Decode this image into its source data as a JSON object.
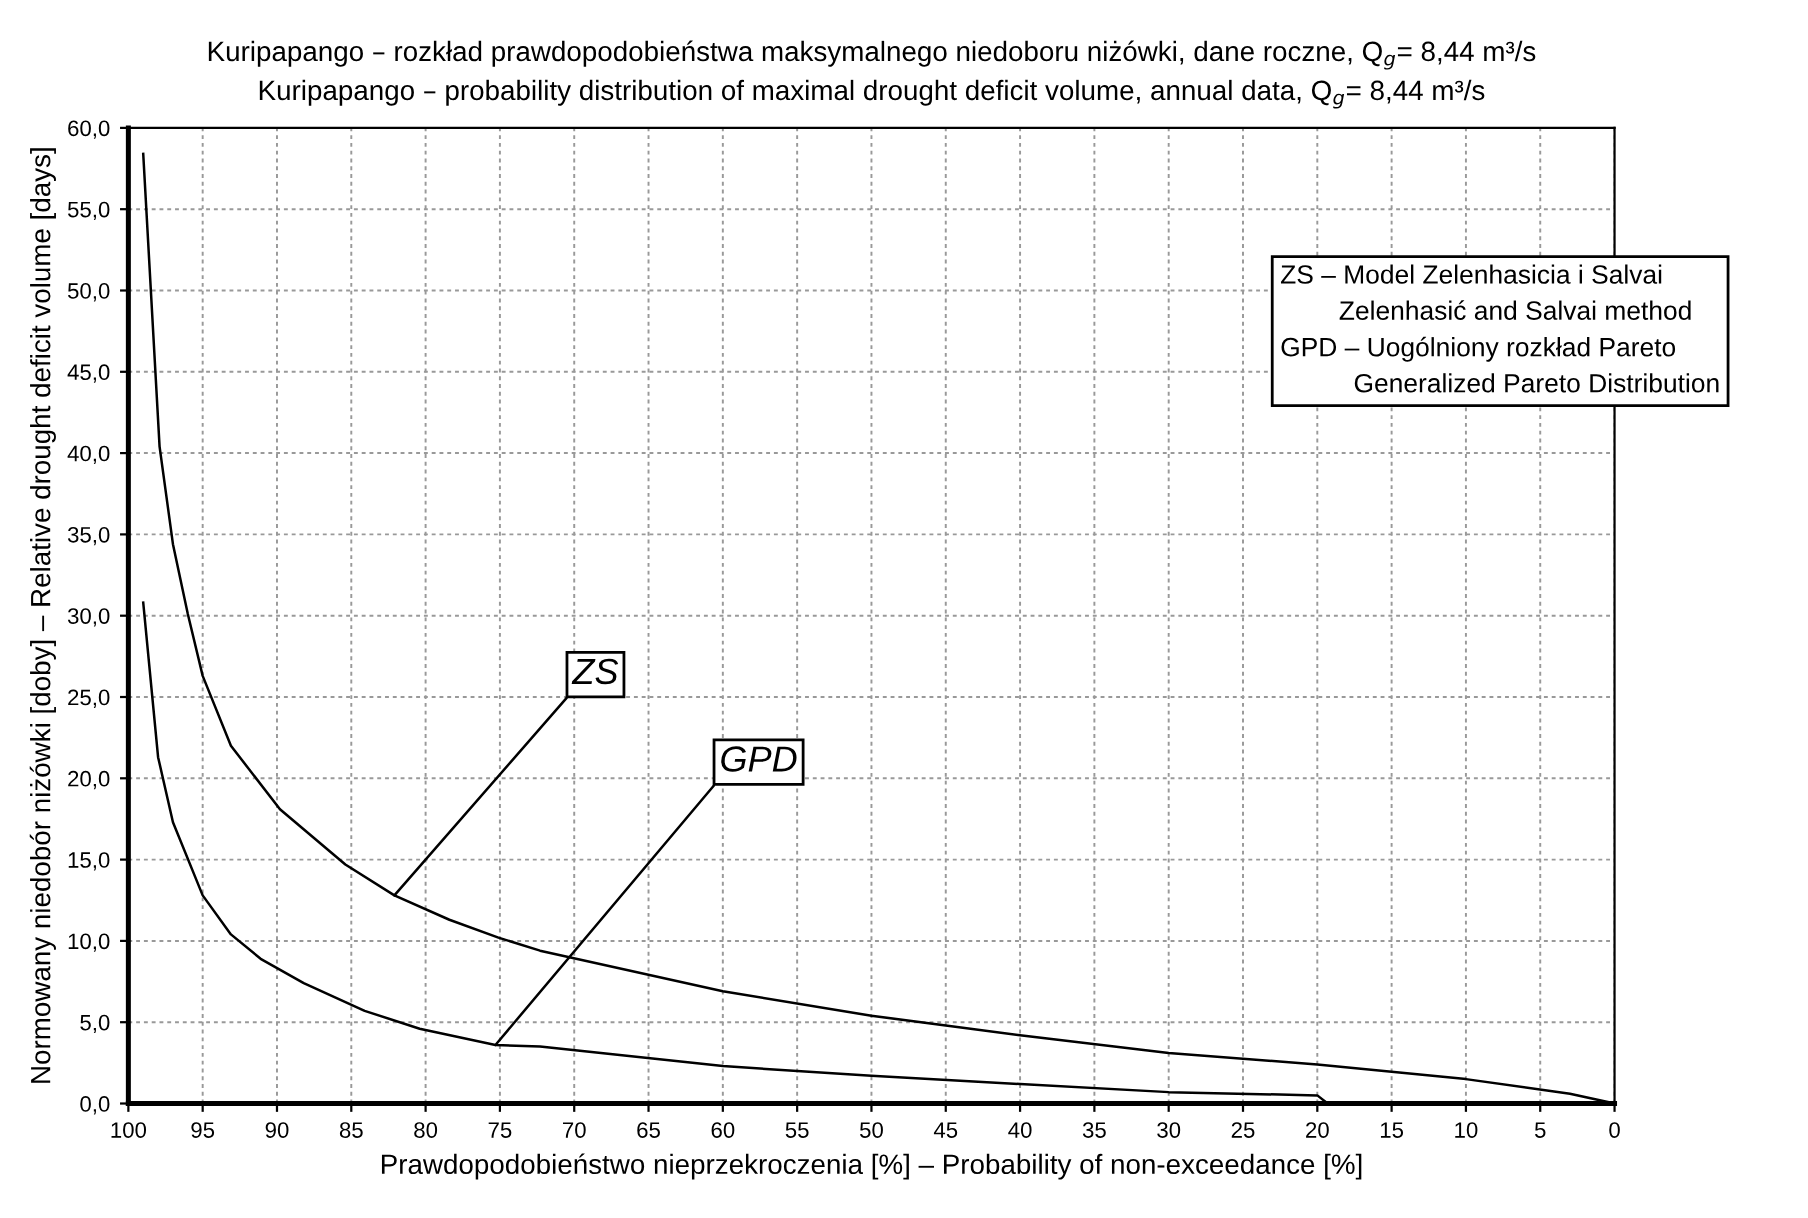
{
  "chart_data": {
    "type": "line",
    "title": "Kuripapango – rozkład prawdopodobieństwa maksymalnego niedoboru niżówki, dane roczne, Q$_{g}$= 8,44 m³/s\nKuripapango – probability distribution of maximal drought deficit volume, annual data, Q$_{g}$= 8,44 m³/s",
    "xlabel": "Prawdopodobieństwo nieprzekroczenia [%] – Probability of non-exceedance [%]",
    "ylabel": "Normowany niedobór niżówki [doby] – Relative drought deficit volume [days]",
    "xlim": [
      100,
      0
    ],
    "xticks": [
      100,
      95,
      90,
      85,
      80,
      75,
      70,
      65,
      60,
      55,
      50,
      45,
      40,
      35,
      30,
      25,
      20,
      15,
      10,
      5,
      0
    ],
    "ylim": [
      0,
      60
    ],
    "yticks": [
      {
        "value": 0,
        "label": "0,0"
      },
      {
        "value": 5,
        "label": "5,0"
      },
      {
        "value": 10,
        "label": "10,0"
      },
      {
        "value": 15,
        "label": "15,0"
      },
      {
        "value": 20,
        "label": "20,0"
      },
      {
        "value": 25,
        "label": "25,0"
      },
      {
        "value": 30,
        "label": "30,0"
      },
      {
        "value": 35,
        "label": "35,0"
      },
      {
        "value": 40,
        "label": "40,0"
      },
      {
        "value": 45,
        "label": "45,0"
      },
      {
        "value": 50,
        "label": "50,0"
      },
      {
        "value": 55,
        "label": "55,0"
      },
      {
        "value": 60,
        "label": "60,0"
      }
    ],
    "grid": true,
    "marker": "none",
    "line_style": "solid",
    "series": [
      {
        "color": "#000000",
        "x": [
          99.0,
          97.9,
          97.0,
          96.0,
          95.0,
          93.1,
          89.8,
          85.4,
          82.1,
          78.4,
          75.1,
          72.3,
          60,
          50,
          40,
          30,
          20,
          10,
          3,
          0
        ],
        "values": [
          58.4,
          40.4,
          34.4,
          30.1,
          26.3,
          22.0,
          18.1,
          14.7,
          12.8,
          11.3,
          10.2,
          9.4,
          6.9,
          5.4,
          4.2,
          3.1,
          2.4,
          1.5,
          0.6,
          0
        ]
      },
      {
        "color": "#000000",
        "x": [
          99.0,
          98.0,
          97.0,
          95.0,
          93.1,
          91.1,
          88.2,
          84.1,
          80.4,
          75.3,
          72.3,
          60,
          50,
          40,
          30,
          20,
          19.3,
          0
        ],
        "values": [
          30.8,
          21.3,
          17.3,
          12.8,
          10.4,
          8.9,
          7.4,
          5.7,
          4.6,
          3.6,
          3.5,
          2.3,
          1.7,
          1.2,
          0.7,
          0.5,
          0,
          0
        ]
      }
    ],
    "annotations": [
      {
        "text": "ZS",
        "x": 82.1,
        "y": 12.8
      },
      {
        "text": "GPD",
        "x": 75.3,
        "y": 3.6
      },
      "ZS – Model Zelenhasicia i Salvai\n        Zelenhasić and Salvai method\nGPD – Uogólniony rozkład Pareto\n          Generalized Pareto Distribution"
    ]
  }
}
